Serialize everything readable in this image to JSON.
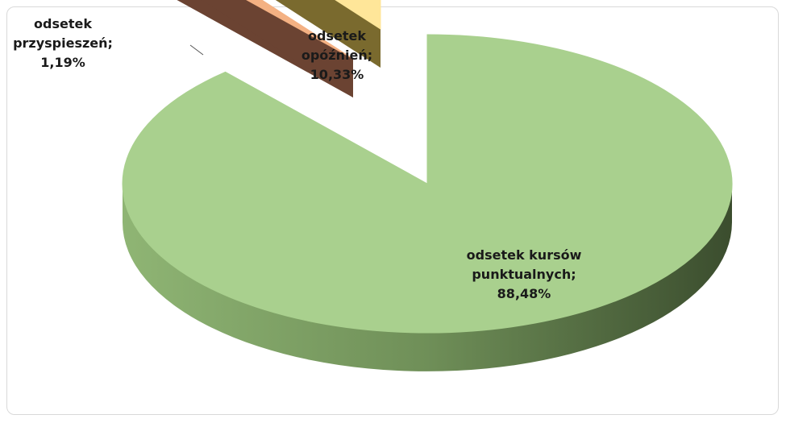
{
  "chart_data": {
    "type": "pie",
    "title": "",
    "style": "3d-exploded",
    "series": [
      {
        "slices": [
          {
            "label_lines": [
              "odsetek kursów",
              "punktualnych;",
              "88,48%"
            ],
            "value": 88.48,
            "color": "#a9d08e"
          },
          {
            "label_lines": [
              "odsetek",
              "przyspieszeń;",
              "1,19%"
            ],
            "value": 1.19,
            "color": "#f4b183"
          },
          {
            "label_lines": [
              "odsetek",
              "opóźnień;",
              "10,33%"
            ],
            "value": 10.33,
            "color": "#ffe699"
          }
        ]
      }
    ]
  }
}
